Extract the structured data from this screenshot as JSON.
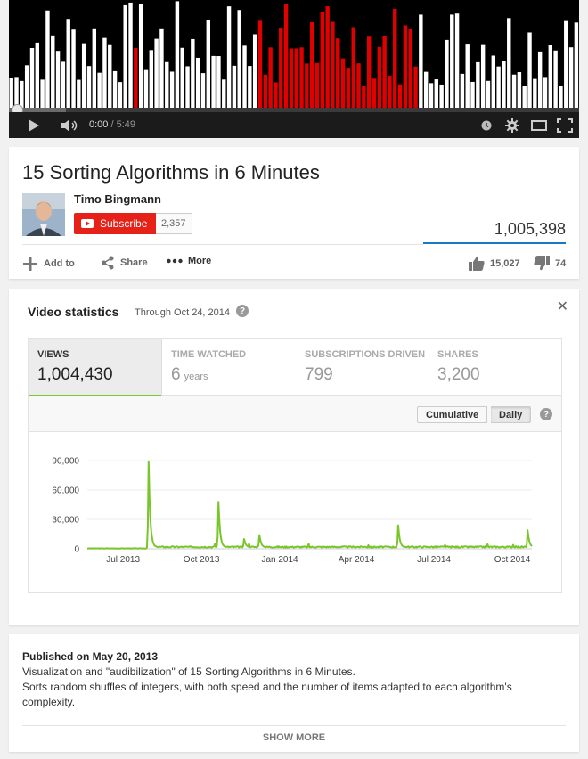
{
  "player": {
    "time_current": "0:00",
    "time_separator": " / ",
    "time_duration": "5:49",
    "progress_played": 0.0,
    "progress_buffered": 0.1,
    "colors": {
      "bars": "#ffffff",
      "highlight": "#e00000",
      "background": "#000000"
    }
  },
  "video": {
    "title": "15 Sorting Algorithms in 6 Minutes",
    "channel": "Timo Bingmann",
    "subscribe_label": "Subscribe",
    "subscriber_count": "2,357",
    "view_count": "1,005,398",
    "actions": {
      "add_to": "Add to",
      "share": "Share",
      "more": "More"
    },
    "likes": "15,027",
    "dislikes": "74"
  },
  "stats": {
    "title": "Video statistics",
    "through": "Through Oct 24, 2014",
    "help": "?",
    "close": "✕",
    "tabs": [
      {
        "label": "VIEWS",
        "value": "1,004,430",
        "unit": ""
      },
      {
        "label": "TIME WATCHED",
        "value": "6",
        "unit": "years"
      },
      {
        "label": "SUBSCRIPTIONS DRIVEN",
        "value": "799",
        "unit": ""
      },
      {
        "label": "SHARES",
        "value": "3,200",
        "unit": ""
      }
    ],
    "toggle": {
      "cumulative": "Cumulative",
      "daily": "Daily"
    }
  },
  "chart_data": {
    "type": "line",
    "x_ticks": [
      "Jul 2013",
      "Oct 2013",
      "Jan 2014",
      "Apr 2014",
      "Jul 2014",
      "Oct 2014"
    ],
    "y_ticks": [
      "90,000",
      "60,000",
      "30,000",
      "0"
    ],
    "ylim": [
      0,
      100000
    ],
    "line_color": "#7ac52c",
    "grid": true,
    "x_range": [
      "2013-05-20",
      "2014-10-24"
    ],
    "peaks": [
      {
        "date": "2013-07-31",
        "value": 89000
      },
      {
        "date": "2013-10-21",
        "value": 48000
      },
      {
        "date": "2013-11-20",
        "value": 10000
      },
      {
        "date": "2013-12-08",
        "value": 14000
      },
      {
        "date": "2014-05-20",
        "value": 24000
      },
      {
        "date": "2014-10-19",
        "value": 19000
      }
    ]
  },
  "description": {
    "published": "Published on May 20, 2013",
    "lines": [
      "Visualization and \"audibilization\" of 15 Sorting Algorithms in 6 Minutes.",
      "Sorts random shuffles of integers, with both speed and the number of items adapted to each algorithm's complexity."
    ],
    "show_more": "SHOW MORE"
  }
}
